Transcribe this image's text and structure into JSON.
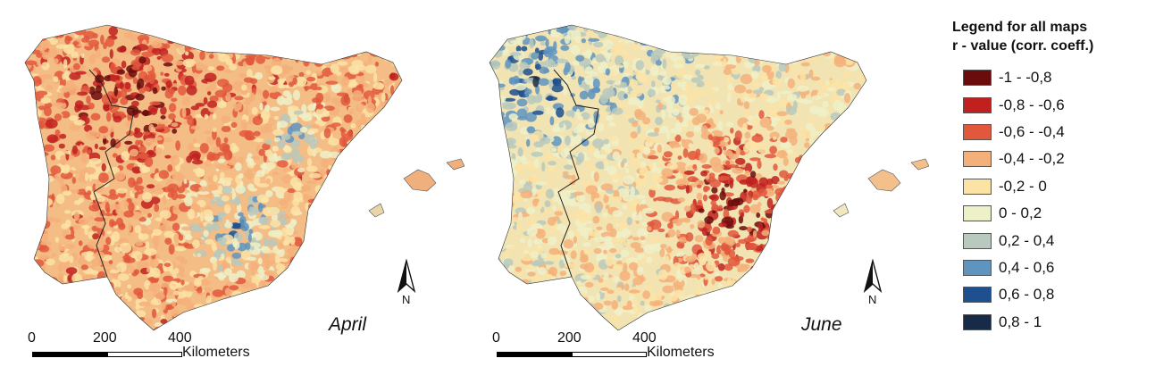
{
  "maps": [
    {
      "id": "april",
      "month_label": "April",
      "north_label": "N",
      "scale": {
        "ticks": [
          "0",
          "200",
          "400"
        ],
        "unit": "Kilometers"
      }
    },
    {
      "id": "june",
      "month_label": "June",
      "north_label": "N",
      "scale": {
        "ticks": [
          "0",
          "200",
          "400"
        ],
        "unit": "Kilometers"
      }
    }
  ],
  "legend": {
    "title_line1": "Legend for all maps",
    "title_line2": "r - value (corr. coeff.)",
    "classes": [
      {
        "label": "-1 - -0,8",
        "color": "#6b0c0c"
      },
      {
        "label": "-0,8 - -0,6",
        "color": "#c0211f"
      },
      {
        "label": "-0,6 - -0,4",
        "color": "#e2583d"
      },
      {
        "label": "-0,4 - -0,2",
        "color": "#f4b07a"
      },
      {
        "label": "-0,2 - 0",
        "color": "#fbe3a6"
      },
      {
        "label": "0 - 0,2",
        "color": "#eef0c8"
      },
      {
        "label": "0,2 - 0,4",
        "color": "#b8c9bd"
      },
      {
        "label": "0,4 - 0,6",
        "color": "#5f94bf"
      },
      {
        "label": "0,6 - 0,8",
        "color": "#1e4f8e"
      },
      {
        "label": "0,8 - 1",
        "color": "#172a48"
      }
    ]
  }
}
